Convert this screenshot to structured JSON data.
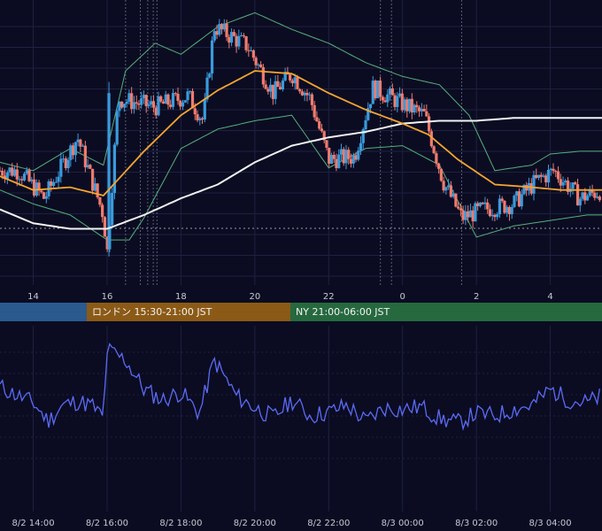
{
  "colors": {
    "background": "#0b0c22",
    "grid": "#1e2140",
    "candle_up": "#3a9bdc",
    "candle_down": "#f07b6e",
    "ma_short": "#f5a530",
    "ma_long": "#f2f2f2",
    "bollinger": "#55b07a",
    "oscillator": "#5b6bf5",
    "session_tokyo": "#2b5a8f",
    "session_london": "#8b5a16",
    "session_ny": "#26693f"
  },
  "sessions": [
    {
      "label": "",
      "color_key": "session_tokyo"
    },
    {
      "label": "ロンドン 15:30-21:00 JST",
      "color_key": "session_london"
    },
    {
      "label": "NY 21:00-06:00 JST",
      "color_key": "session_ny"
    }
  ],
  "chart_data": [
    {
      "type": "candlestick",
      "title": "",
      "x_unit": "hour (JST)",
      "x_tick_labels": [
        "14",
        "16",
        "18",
        "20",
        "22",
        "0",
        "2",
        "4"
      ],
      "x_tick_hours": [
        14,
        16,
        18,
        20,
        22,
        24,
        26,
        28
      ],
      "x_range_hours": [
        13.1,
        29.4
      ],
      "indicators": [
        "moving average (short)",
        "moving average (long)",
        "bollinger bands"
      ],
      "grid": true,
      "anchor_series": [
        {
          "name": "close",
          "values": [
            [
              13.1,
              0.4
            ],
            [
              13.6,
              0.4
            ],
            [
              14.3,
              0.3
            ],
            [
              15.2,
              0.52
            ],
            [
              15.9,
              0.24
            ],
            [
              16.0,
              0.1
            ],
            [
              16.3,
              0.66
            ],
            [
              17.3,
              0.63
            ],
            [
              18.2,
              0.67
            ],
            [
              18.6,
              0.58
            ],
            [
              18.9,
              0.92
            ],
            [
              19.8,
              0.85
            ],
            [
              20.5,
              0.68
            ],
            [
              21.0,
              0.75
            ],
            [
              21.5,
              0.66
            ],
            [
              22.0,
              0.44
            ],
            [
              22.7,
              0.45
            ],
            [
              23.2,
              0.7
            ],
            [
              24.0,
              0.64
            ],
            [
              24.6,
              0.6
            ],
            [
              25.1,
              0.36
            ],
            [
              25.6,
              0.23
            ],
            [
              26.2,
              0.26
            ],
            [
              27.0,
              0.28
            ],
            [
              27.6,
              0.36
            ],
            [
              28.1,
              0.4
            ],
            [
              28.8,
              0.3
            ],
            [
              29.4,
              0.33
            ]
          ]
        },
        {
          "name": "ma_short",
          "values": [
            [
              13.1,
              0.38
            ],
            [
              14.0,
              0.33
            ],
            [
              15.0,
              0.34
            ],
            [
              15.9,
              0.31
            ],
            [
              17.0,
              0.47
            ],
            [
              18.0,
              0.6
            ],
            [
              19.0,
              0.69
            ],
            [
              20.0,
              0.76
            ],
            [
              21.0,
              0.75
            ],
            [
              22.0,
              0.68
            ],
            [
              23.0,
              0.62
            ],
            [
              24.0,
              0.57
            ],
            [
              24.7,
              0.53
            ],
            [
              25.5,
              0.44
            ],
            [
              26.5,
              0.35
            ],
            [
              27.5,
              0.34
            ],
            [
              28.3,
              0.33
            ],
            [
              29.4,
              0.33
            ]
          ]
        },
        {
          "name": "ma_long",
          "values": [
            [
              13.1,
              0.26
            ],
            [
              14.0,
              0.21
            ],
            [
              15.0,
              0.19
            ],
            [
              16.0,
              0.19
            ],
            [
              17.0,
              0.24
            ],
            [
              18.0,
              0.3
            ],
            [
              19.0,
              0.35
            ],
            [
              20.0,
              0.43
            ],
            [
              21.0,
              0.49
            ],
            [
              22.0,
              0.52
            ],
            [
              23.0,
              0.54
            ],
            [
              24.0,
              0.57
            ],
            [
              25.0,
              0.58
            ],
            [
              26.0,
              0.58
            ],
            [
              27.0,
              0.59
            ],
            [
              28.0,
              0.59
            ],
            [
              29.4,
              0.59
            ]
          ]
        },
        {
          "name": "bollinger_upper",
          "values": [
            [
              13.1,
              0.43
            ],
            [
              14.0,
              0.4
            ],
            [
              15.0,
              0.48
            ],
            [
              15.9,
              0.42
            ],
            [
              16.5,
              0.76
            ],
            [
              17.3,
              0.86
            ],
            [
              18.0,
              0.82
            ],
            [
              19.0,
              0.92
            ],
            [
              20.0,
              0.97
            ],
            [
              21.0,
              0.91
            ],
            [
              22.0,
              0.86
            ],
            [
              23.0,
              0.79
            ],
            [
              24.0,
              0.74
            ],
            [
              25.0,
              0.71
            ],
            [
              25.8,
              0.6
            ],
            [
              26.5,
              0.4
            ],
            [
              27.5,
              0.42
            ],
            [
              28.0,
              0.46
            ],
            [
              28.8,
              0.47
            ],
            [
              29.4,
              0.47
            ]
          ]
        },
        {
          "name": "bollinger_lower",
          "values": [
            [
              13.1,
              0.33
            ],
            [
              14.0,
              0.28
            ],
            [
              15.0,
              0.24
            ],
            [
              16.0,
              0.15
            ],
            [
              16.6,
              0.15
            ],
            [
              17.0,
              0.23
            ],
            [
              18.0,
              0.48
            ],
            [
              19.0,
              0.55
            ],
            [
              20.0,
              0.58
            ],
            [
              21.0,
              0.6
            ],
            [
              22.0,
              0.41
            ],
            [
              23.0,
              0.48
            ],
            [
              24.0,
              0.49
            ],
            [
              25.0,
              0.42
            ],
            [
              26.0,
              0.16
            ],
            [
              27.0,
              0.2
            ],
            [
              28.0,
              0.22
            ],
            [
              29.0,
              0.24
            ],
            [
              29.4,
              0.24
            ]
          ]
        }
      ]
    },
    {
      "type": "line",
      "title": "",
      "x_tick_labels": [
        "8/2 14:00",
        "8/2 16:00",
        "8/2 18:00",
        "8/2 20:00",
        "8/2 22:00",
        "8/3 00:00",
        "8/3 02:00",
        "8/3 04:00"
      ],
      "x_tick_hours": [
        14,
        16,
        18,
        20,
        22,
        24,
        26,
        28
      ],
      "x_range_hours": [
        13.1,
        29.4
      ],
      "grid": true,
      "series": [
        {
          "name": "",
          "values": [
            [
              13.1,
              0.62
            ],
            [
              13.6,
              0.55
            ],
            [
              14.0,
              0.5
            ],
            [
              14.4,
              0.36
            ],
            [
              14.8,
              0.48
            ],
            [
              15.2,
              0.51
            ],
            [
              15.6,
              0.48
            ],
            [
              15.9,
              0.38
            ],
            [
              16.0,
              0.9
            ],
            [
              16.5,
              0.82
            ],
            [
              17.0,
              0.6
            ],
            [
              17.5,
              0.52
            ],
            [
              18.0,
              0.58
            ],
            [
              18.5,
              0.42
            ],
            [
              18.9,
              0.82
            ],
            [
              19.5,
              0.55
            ],
            [
              20.0,
              0.46
            ],
            [
              20.5,
              0.39
            ],
            [
              21.0,
              0.52
            ],
            [
              21.5,
              0.4
            ],
            [
              22.0,
              0.43
            ],
            [
              22.5,
              0.48
            ],
            [
              23.0,
              0.36
            ],
            [
              23.5,
              0.46
            ],
            [
              24.0,
              0.45
            ],
            [
              24.5,
              0.47
            ],
            [
              25.0,
              0.38
            ],
            [
              25.5,
              0.35
            ],
            [
              26.0,
              0.42
            ],
            [
              26.5,
              0.4
            ],
            [
              27.0,
              0.45
            ],
            [
              27.5,
              0.48
            ],
            [
              28.0,
              0.6
            ],
            [
              28.5,
              0.52
            ],
            [
              29.0,
              0.5
            ],
            [
              29.4,
              0.55
            ]
          ]
        }
      ]
    }
  ]
}
